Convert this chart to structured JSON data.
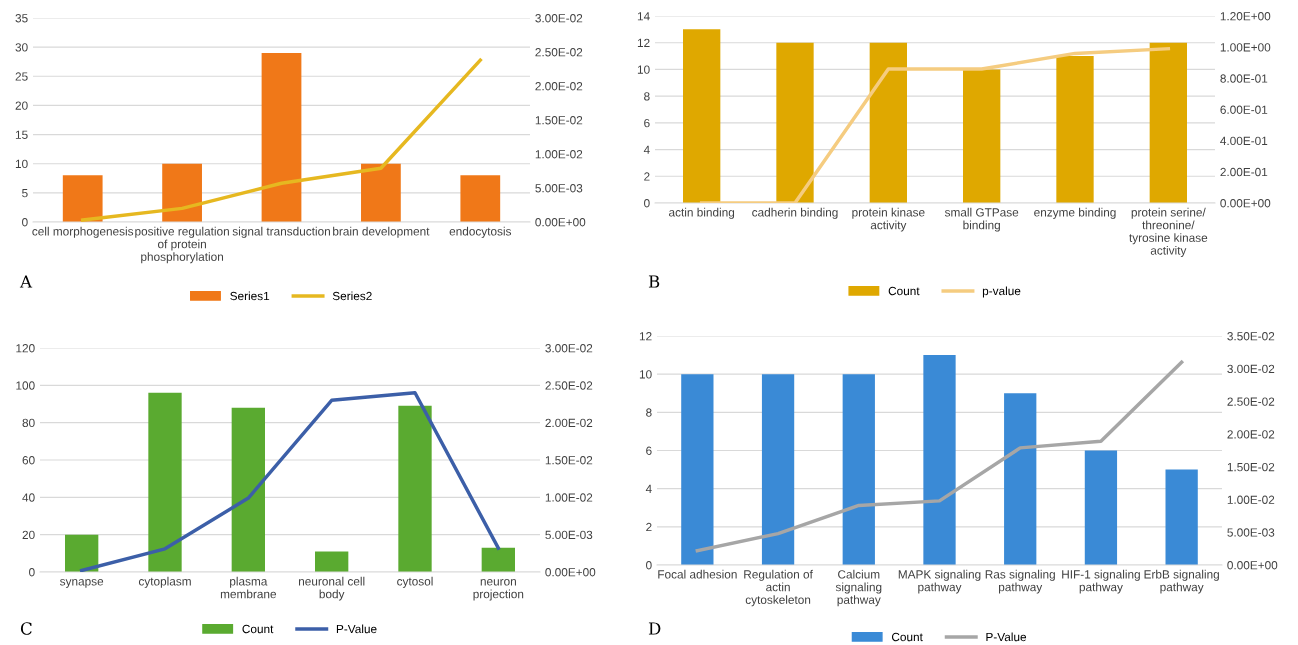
{
  "chart_data": [
    {
      "type": "bar",
      "categories": [
        "cell morphogenesis",
        "positive regulation of protein phosphorylation",
        "signal transduction",
        "brain development",
        "endocytosis"
      ],
      "series": [
        {
          "name": "Series1",
          "color": "#f07818",
          "values": [
            8,
            10,
            29,
            10,
            8
          ]
        },
        {
          "name": "Series2",
          "type": "line",
          "axis": "y2",
          "color": "#e6b820",
          "values": [
            0.0003,
            0.002,
            0.0057,
            0.0079,
            0.0238
          ]
        }
      ],
      "ylim": [
        0,
        35
      ],
      "yticks": [
        0,
        5,
        10,
        15,
        20,
        25,
        30,
        35
      ],
      "y2lim": [
        0,
        0.03
      ],
      "y2ticks": [
        {
          "value": 0,
          "label": "0.00E+00"
        },
        {
          "value": 0.005,
          "label": "5.00E-03"
        },
        {
          "value": 0.01,
          "label": "1.00E-02"
        },
        {
          "value": 0.015,
          "label": "1.50E-02"
        },
        {
          "value": 0.02,
          "label": "2.00E-02"
        },
        {
          "value": 0.025,
          "label": "2.50E-02"
        },
        {
          "value": 0.03,
          "label": "3.00E-02"
        }
      ],
      "grid": "y",
      "legend": "bottom",
      "marker": "none",
      "annotations": [
        "A"
      ]
    },
    {
      "type": "bar",
      "categories": [
        "actin binding",
        "cadherin binding",
        "protein kinase activity",
        "small GTPase binding",
        "enzyme binding",
        "protein serine/ threonine/ tyrosine kinase activity"
      ],
      "series": [
        {
          "name": "Count",
          "color": "#dfa800",
          "values": [
            13,
            12,
            12,
            10,
            11,
            12
          ]
        },
        {
          "name": "p-value",
          "type": "line",
          "axis": "y2",
          "color": "#f5cc80",
          "values": [
            0,
            0,
            0.86,
            0.86,
            0.96,
            0.99
          ]
        }
      ],
      "ylim": [
        0,
        14
      ],
      "yticks": [
        0,
        2,
        4,
        6,
        8,
        10,
        12,
        14
      ],
      "y2lim": [
        0,
        1.2
      ],
      "y2ticks": [
        {
          "value": 0,
          "label": "0.00E+00"
        },
        {
          "value": 0.2,
          "label": "2.00E-01"
        },
        {
          "value": 0.4,
          "label": "4.00E-01"
        },
        {
          "value": 0.6,
          "label": "6.00E-01"
        },
        {
          "value": 0.8,
          "label": "8.00E-01"
        },
        {
          "value": 1.0,
          "label": "1.00E+00"
        },
        {
          "value": 1.2,
          "label": "1.20E+00"
        }
      ],
      "grid": "y",
      "legend": "bottom",
      "marker": "none",
      "annotations": [
        "B"
      ]
    },
    {
      "type": "bar",
      "categories": [
        "synapse",
        "cytoplasm",
        "plasma membrane",
        "neuronal cell body",
        "cytosol",
        "neuron projection"
      ],
      "series": [
        {
          "name": "Count",
          "color": "#5aaa30",
          "values": [
            20,
            96,
            88,
            11,
            89,
            13
          ]
        },
        {
          "name": "P-Value",
          "type": "line",
          "axis": "y2",
          "color": "#3c5fa8",
          "values": [
            0.0002,
            0.0031,
            0.0099,
            0.023,
            0.024,
            0.0032
          ]
        }
      ],
      "ylim": [
        0,
        120
      ],
      "yticks": [
        0,
        20,
        40,
        60,
        80,
        100,
        120
      ],
      "y2lim": [
        0,
        0.03
      ],
      "y2ticks": [
        {
          "value": 0,
          "label": "0.00E+00"
        },
        {
          "value": 0.005,
          "label": "5.00E-03"
        },
        {
          "value": 0.01,
          "label": "1.00E-02"
        },
        {
          "value": 0.015,
          "label": "1.50E-02"
        },
        {
          "value": 0.02,
          "label": "2.00E-02"
        },
        {
          "value": 0.025,
          "label": "2.50E-02"
        },
        {
          "value": 0.03,
          "label": "3.00E-02"
        }
      ],
      "grid": "y",
      "legend": "bottom",
      "marker": "none",
      "annotations": [
        "C"
      ]
    },
    {
      "type": "bar",
      "categories": [
        "Focal adhesion",
        "Regulation of actin cytoskeleton",
        "Calcium signaling pathway",
        "MAPK signaling pathway",
        "Ras signaling pathway",
        "HIF-1 signaling pathway",
        "ErbB signaling pathway"
      ],
      "series": [
        {
          "name": "Count",
          "color": "#3a8ad6",
          "values": [
            10,
            10,
            10,
            11,
            9,
            6,
            5
          ]
        },
        {
          "name": "P-Value",
          "type": "line",
          "axis": "y2",
          "color": "#a6a6a6",
          "values": [
            0.0022,
            0.0048,
            0.0091,
            0.0098,
            0.0179,
            0.0189,
            0.031
          ]
        }
      ],
      "ylim": [
        0,
        12
      ],
      "yticks": [
        0,
        2,
        4,
        6,
        8,
        10,
        12
      ],
      "y2lim": [
        0,
        0.035
      ],
      "y2ticks": [
        {
          "value": 0,
          "label": "0.00E+00"
        },
        {
          "value": 0.005,
          "label": "5.00E-03"
        },
        {
          "value": 0.01,
          "label": "1.00E-02"
        },
        {
          "value": 0.015,
          "label": "1.50E-02"
        },
        {
          "value": 0.02,
          "label": "2.00E-02"
        },
        {
          "value": 0.025,
          "label": "2.50E-02"
        },
        {
          "value": 0.03,
          "label": "3.00E-02"
        },
        {
          "value": 0.035,
          "label": "3.50E-02"
        }
      ],
      "grid": "y",
      "legend": "bottom",
      "marker": "none",
      "annotations": [
        "D"
      ]
    }
  ]
}
